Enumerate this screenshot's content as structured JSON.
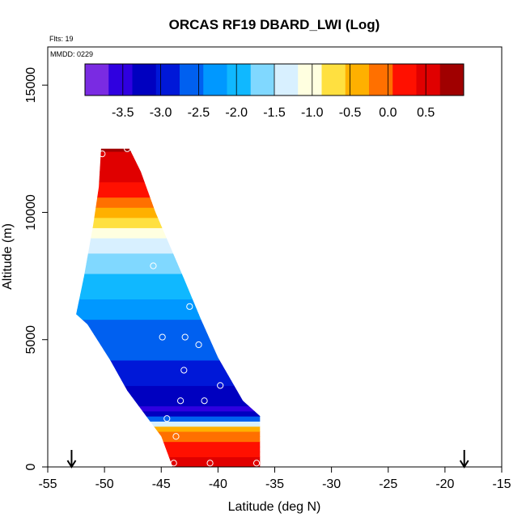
{
  "chart_data": {
    "type": "heatmap",
    "title": "ORCAS RF19 DBARD_LWI (Log)",
    "xlabel": "Latitude (deg N)",
    "ylabel": "Altitude (m)",
    "xlim": [
      -55,
      -15
    ],
    "ylim": [
      0,
      16500
    ],
    "x_ticks": [
      -55,
      -50,
      -45,
      -40,
      -35,
      -30,
      -25,
      -20,
      -15
    ],
    "x_tick_labels": [
      "-55",
      "-50",
      "-45",
      "-40",
      "-35",
      "-30",
      "-25",
      "-20",
      "-15"
    ],
    "y_ticks": [
      0,
      5000,
      10000,
      15000
    ],
    "y_tick_labels": [
      "0",
      "5000",
      "10000",
      "15000"
    ],
    "annotations": {
      "flights": "Flts: 19",
      "date": "MMDD: 0229"
    },
    "colorbar": {
      "range": [
        -4.0,
        1.0
      ],
      "colors": [
        "#7a2be2",
        "#2f00e0",
        "#0000c0",
        "#0018d8",
        "#0060f0",
        "#0098ff",
        "#10b8ff",
        "#80d8ff",
        "#d8f0ff",
        "#ffffe0",
        "#ffe040",
        "#ffb000",
        "#ff7000",
        "#ff1000",
        "#e00000",
        "#a00000"
      ],
      "ticks": [
        -3.5,
        -3.0,
        -2.5,
        -2.0,
        -1.5,
        -1.0,
        -0.5,
        0.0,
        0.5
      ],
      "tick_labels": [
        "-3.5",
        "-3.0",
        "-2.5",
        "-2.0",
        "-1.5",
        "-1.0",
        "-0.5",
        "0.0",
        "0.5"
      ]
    },
    "region": {
      "outline": [
        {
          "lat": -50.3,
          "alt": 12500
        },
        {
          "lat": -47.8,
          "alt": 12500
        },
        {
          "lat": -46.8,
          "alt": 11600
        },
        {
          "lat": -45.5,
          "alt": 10000
        },
        {
          "lat": -43.0,
          "alt": 7400
        },
        {
          "lat": -41.5,
          "alt": 5800
        },
        {
          "lat": -40.0,
          "alt": 4300
        },
        {
          "lat": -37.8,
          "alt": 2600
        },
        {
          "lat": -36.3,
          "alt": 2000
        },
        {
          "lat": -36.3,
          "alt": 0
        },
        {
          "lat": -44.0,
          "alt": 0
        },
        {
          "lat": -45.0,
          "alt": 1200
        },
        {
          "lat": -46.0,
          "alt": 1800
        },
        {
          "lat": -48.0,
          "alt": 3000
        },
        {
          "lat": -49.5,
          "alt": 4200
        },
        {
          "lat": -51.5,
          "alt": 5600
        },
        {
          "lat": -52.5,
          "alt": 6000
        },
        {
          "lat": -51.8,
          "alt": 7500
        },
        {
          "lat": -51.0,
          "alt": 9500
        },
        {
          "lat": -50.5,
          "alt": 11000
        }
      ],
      "samples": [
        {
          "alt": 12500,
          "value": 0.7
        },
        {
          "alt": 11000,
          "value": 0.3
        },
        {
          "alt": 10000,
          "value": -0.4
        },
        {
          "alt": 9000,
          "value": -1.2
        },
        {
          "alt": 8000,
          "value": -1.7
        },
        {
          "alt": 7000,
          "value": -2.0
        },
        {
          "alt": 6000,
          "value": -2.4
        },
        {
          "alt": 5000,
          "value": -2.6
        },
        {
          "alt": 4000,
          "value": -2.8
        },
        {
          "alt": 3000,
          "value": -3.1
        },
        {
          "alt": 2200,
          "value": -3.5
        },
        {
          "alt": 1800,
          "value": -2.2
        },
        {
          "alt": 1600,
          "value": -0.6
        },
        {
          "alt": 1000,
          "value": 0.1
        },
        {
          "alt": 0,
          "value": 0.6
        }
      ]
    },
    "flight_points": [
      {
        "lat": -50.2,
        "alt": 12300
      },
      {
        "lat": -48.0,
        "alt": 12500
      },
      {
        "lat": -45.7,
        "alt": 7900
      },
      {
        "lat": -42.5,
        "alt": 6300
      },
      {
        "lat": -44.9,
        "alt": 5100
      },
      {
        "lat": -42.9,
        "alt": 5100
      },
      {
        "lat": -41.7,
        "alt": 4800
      },
      {
        "lat": -43.0,
        "alt": 3800
      },
      {
        "lat": -39.8,
        "alt": 3200
      },
      {
        "lat": -43.3,
        "alt": 2600
      },
      {
        "lat": -41.2,
        "alt": 2600
      },
      {
        "lat": -44.5,
        "alt": 1900
      },
      {
        "lat": -43.7,
        "alt": 1200
      },
      {
        "lat": -43.9,
        "alt": 150
      },
      {
        "lat": -40.7,
        "alt": 150
      },
      {
        "lat": -36.6,
        "alt": 150
      }
    ],
    "markers": [
      {
        "lat": -52.9,
        "label": "down-arrow"
      },
      {
        "lat": -18.3,
        "label": "down-arrow"
      }
    ]
  }
}
